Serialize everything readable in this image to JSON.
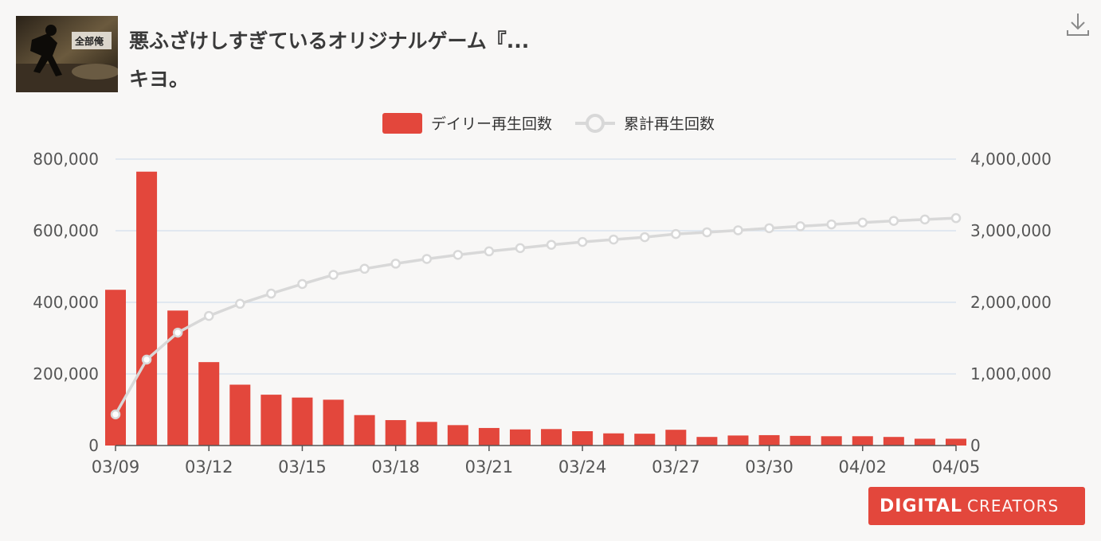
{
  "video": {
    "title_line1": "悪ふざけしすぎているオリジナルゲーム『...",
    "title_line2": "キヨ。",
    "thumbnail_text": "全部俺"
  },
  "logo": {
    "part1": "DIGITAL",
    "part2": "CREATORS"
  },
  "colors": {
    "bar": "#e3473c",
    "line": "#d8d8d8",
    "grid": "#d9e3ee",
    "axis_text": "#555555"
  },
  "chart_data": {
    "type": "bar",
    "title": "",
    "legend": {
      "position": "top-center",
      "entries": [
        "デイリー再生回数",
        "累計再生回数"
      ]
    },
    "grid": true,
    "x": [
      "03/09",
      "03/10",
      "03/11",
      "03/12",
      "03/13",
      "03/14",
      "03/15",
      "03/16",
      "03/17",
      "03/18",
      "03/19",
      "03/20",
      "03/21",
      "03/22",
      "03/23",
      "03/24",
      "03/25",
      "03/26",
      "03/27",
      "03/28",
      "03/29",
      "03/30",
      "03/31",
      "04/01",
      "04/02",
      "04/03",
      "04/04",
      "04/05"
    ],
    "x_tick_labels": [
      "03/09",
      "03/12",
      "03/15",
      "03/18",
      "03/21",
      "03/24",
      "03/27",
      "03/30",
      "04/02",
      "04/05"
    ],
    "y_left": {
      "range": [
        0,
        800000
      ],
      "ticks": [
        "0",
        "200,000",
        "400,000",
        "600,000",
        "800,000"
      ]
    },
    "y_right": {
      "range": [
        0,
        4000000
      ],
      "ticks": [
        "0",
        "1,000,000",
        "2,000,000",
        "3,000,000",
        "4,000,000"
      ]
    },
    "series": [
      {
        "name": "デイリー再生回数",
        "type": "bar",
        "axis": "left",
        "values": [
          435000,
          765000,
          377000,
          233000,
          170000,
          142000,
          134000,
          128000,
          85000,
          71000,
          66000,
          57000,
          49000,
          45000,
          46000,
          40000,
          34000,
          33000,
          44000,
          24000,
          28000,
          29000,
          27000,
          26000,
          26000,
          24000,
          19000,
          19000
        ]
      },
      {
        "name": "累計再生回数",
        "type": "line",
        "axis": "right",
        "values": [
          435000,
          1200000,
          1577000,
          1810000,
          1980000,
          2122000,
          2256000,
          2384000,
          2469000,
          2540000,
          2606000,
          2663000,
          2712000,
          2757000,
          2803000,
          2843000,
          2877000,
          2910000,
          2954000,
          2978000,
          3006000,
          3035000,
          3062000,
          3088000,
          3114000,
          3138000,
          3157000,
          3176000
        ]
      }
    ]
  }
}
